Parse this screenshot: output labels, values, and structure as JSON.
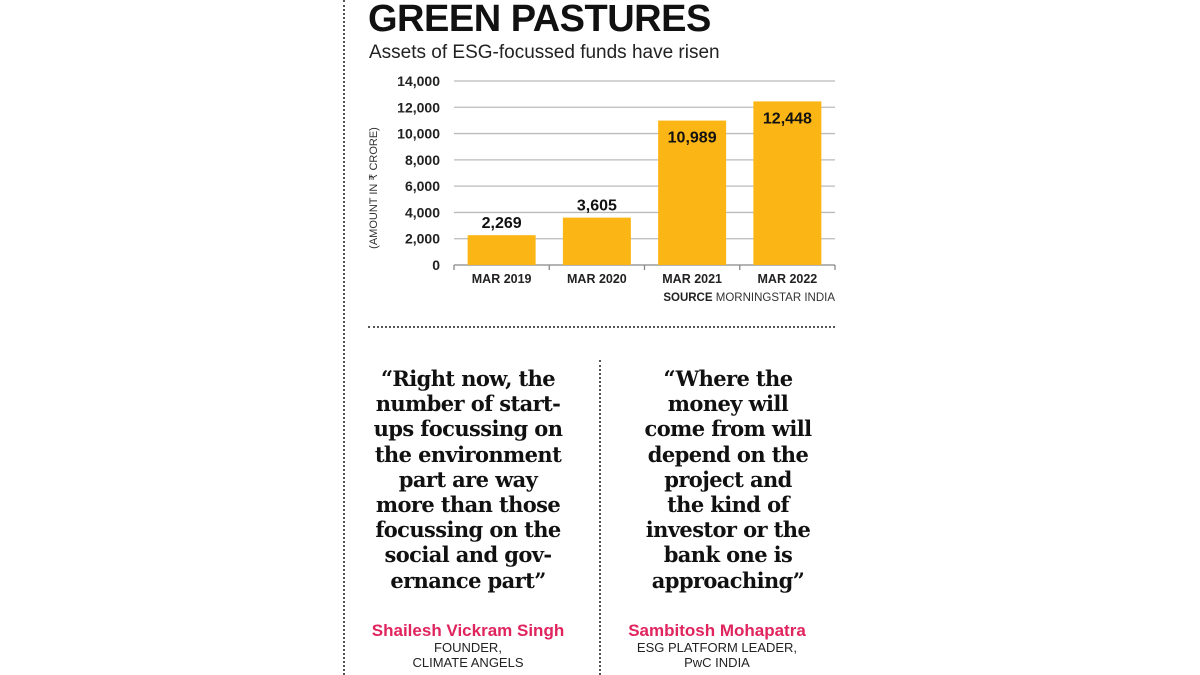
{
  "title": "GREEN PASTURES",
  "subtitle": "Assets of ESG-focussed funds have risen",
  "source": {
    "label": "SOURCE",
    "text": "MORNINGSTAR INDIA"
  },
  "chart_data": {
    "type": "bar",
    "categories": [
      "MAR 2019",
      "MAR 2020",
      "MAR 2021",
      "MAR 2022"
    ],
    "values": [
      2269,
      3605,
      10989,
      12448
    ],
    "data_labels": [
      "2,269",
      "3,605",
      "10,989",
      "12,448"
    ],
    "ylabel": "(AMOUNT IN ₹ CRORE)",
    "ylim": [
      0,
      14000
    ],
    "yticks": [
      0,
      2000,
      4000,
      6000,
      8000,
      10000,
      12000,
      14000
    ],
    "ytick_labels": [
      "0",
      "2,000",
      "4,000",
      "6,000",
      "8,000",
      "10,000",
      "12,000",
      "14,000"
    ],
    "grid": true,
    "bar_color": "#fbb615"
  },
  "quotes": [
    {
      "text": "“Right now, the\nnumber of start-\nups focussing on\nthe environment\npart are way\nmore than those\nfocussing on the\nsocial and gov-\nernance part”",
      "name": "Shailesh Vickram Singh",
      "role": "FOUNDER,\nCLIMATE ANGELS"
    },
    {
      "text": "“Where the\nmoney will\ncome from will\ndepend on the\nproject and\nthe kind of\ninvestor or the\nbank one is\napproaching”",
      "name": "Sambitosh Mohapatra",
      "role": "ESG PLATFORM LEADER,\nPwC INDIA"
    }
  ],
  "colors": {
    "accent_name": "#e0245e",
    "bar": "#fbb615"
  }
}
